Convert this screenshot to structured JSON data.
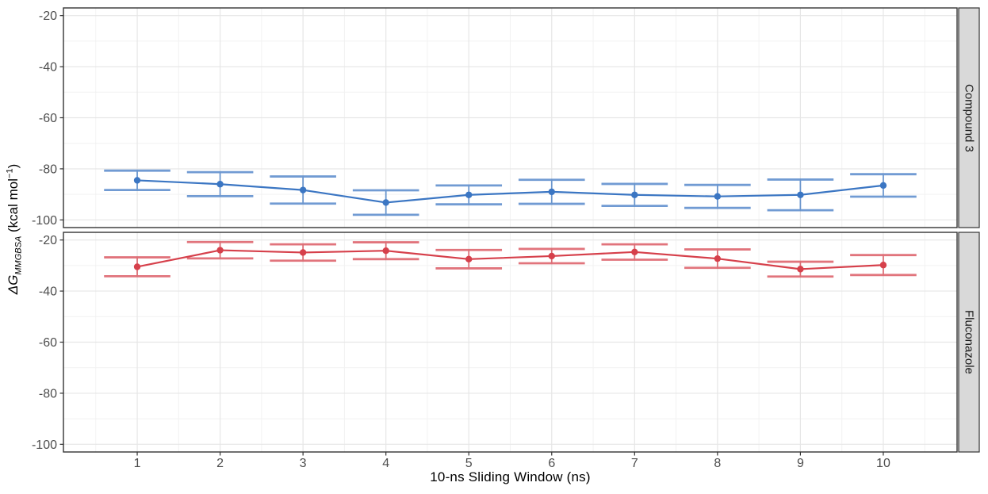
{
  "labels": {
    "x_title": "10-ns Sliding Window (ns)",
    "y_delta": "ΔG",
    "y_sub": "MMGBSA",
    "y_unit_pre": " (kcal mol",
    "y_sup": "−1",
    "y_unit_post": ")"
  },
  "chart_data": {
    "type": "line",
    "title": "",
    "xlabel": "10-ns Sliding Window (ns)",
    "ylabel": "ΔG_MMGBSA (kcal mol^-1)",
    "facet_layout": "rows",
    "legend": "none",
    "grid": true,
    "x": [
      1,
      2,
      3,
      4,
      5,
      6,
      7,
      8,
      9,
      10
    ],
    "x_ticks": [
      1,
      2,
      3,
      4,
      5,
      6,
      7,
      8,
      9,
      10
    ],
    "y_ticks": [
      -20,
      -40,
      -60,
      -80,
      -100
    ],
    "x_minor": [
      0.5,
      1.5,
      2.5,
      3.5,
      4.5,
      5.5,
      6.5,
      7.5,
      8.5,
      9.5,
      10.5
    ],
    "y_minor": [
      -30,
      -50,
      -70,
      -90
    ],
    "xlim": [
      0.11,
      10.89
    ],
    "ylim": [
      -103,
      -17
    ],
    "error_bar_half_width": 0.4,
    "series": [
      {
        "facet": "Compound 3",
        "color": "#3B76C3",
        "y": [
          -84.5,
          -86.0,
          -88.3,
          -93.2,
          -90.2,
          -89.0,
          -90.2,
          -90.8,
          -90.2,
          -86.5
        ],
        "err": [
          3.8,
          4.7,
          5.3,
          4.8,
          3.7,
          4.7,
          4.3,
          4.5,
          6.0,
          4.4
        ]
      },
      {
        "facet": "Fluconazole",
        "color": "#D6404B",
        "y": [
          -30.5,
          -24.0,
          -24.9,
          -24.2,
          -27.5,
          -26.3,
          -24.7,
          -27.3,
          -31.4,
          -29.8
        ],
        "err": [
          3.7,
          3.2,
          3.2,
          3.3,
          3.6,
          2.8,
          3.0,
          3.6,
          2.9,
          3.9
        ]
      }
    ],
    "colors": {
      "panel_bg": "#FFFFFF",
      "grid_major": "#E6E6E6",
      "grid_minor": "#F2F2F2",
      "panel_border": "#333333",
      "strip_fill": "#D9D9D9",
      "tick": "#333333",
      "tick_label": "#4D4D4D"
    }
  }
}
